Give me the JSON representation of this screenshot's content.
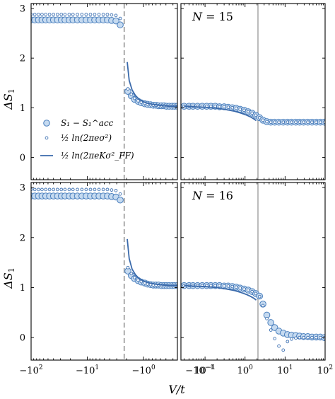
{
  "chart_data": [
    {
      "type": "scatter",
      "panel": "top-left",
      "annotation": "",
      "ylabel": "ΔS_1",
      "xlabel": "",
      "x_scale": "symlog-negative",
      "xlim": [
        -100,
        -0.25
      ],
      "ylim": [
        -0.45,
        3.1
      ],
      "yticks": [
        "0",
        "1",
        "2",
        "3"
      ],
      "xtick_labels": [],
      "vline": {
        "x": -2.2,
        "style": "dashed",
        "color": "#b5b5b5"
      },
      "legend": {
        "placement": "lower-left",
        "entries": [
          {
            "marker": "big-circle",
            "text": "S₁ − S₁^acc"
          },
          {
            "marker": "small-circle",
            "text": "½ ln(2πeσ²)"
          },
          {
            "marker": "line",
            "text": "½ ln(2πeKσ²_FF)"
          }
        ]
      },
      "series": [
        {
          "name": "S₁ − S₁^acc",
          "marker": "big-circle",
          "x": [
            -100,
            -86,
            -74,
            -64,
            -55,
            -47,
            -40,
            -34,
            -29,
            -25,
            -21,
            -18,
            -15,
            -12.5,
            -10.5,
            -8.8,
            -7.4,
            -6.2,
            -5.2,
            -4.4,
            -3.7,
            -3.1,
            -2.6,
            -1.9,
            -1.65,
            -1.45,
            -1.25,
            -1.1,
            -0.95,
            -0.85,
            -0.75,
            -0.67,
            -0.6,
            -0.54,
            -0.48,
            -0.43,
            -0.39,
            -0.35,
            -0.31,
            -0.28,
            -0.25
          ],
          "y": [
            2.77,
            2.77,
            2.77,
            2.77,
            2.77,
            2.77,
            2.77,
            2.77,
            2.77,
            2.77,
            2.77,
            2.77,
            2.77,
            2.77,
            2.77,
            2.77,
            2.77,
            2.77,
            2.77,
            2.77,
            2.76,
            2.75,
            2.67,
            1.33,
            1.24,
            1.17,
            1.13,
            1.1,
            1.08,
            1.07,
            1.06,
            1.05,
            1.05,
            1.04,
            1.04,
            1.04,
            1.03,
            1.03,
            1.03,
            1.03,
            1.03
          ]
        },
        {
          "name": "½ ln(2πeσ²)",
          "marker": "small-circle",
          "x": [
            -100,
            -86,
            -74,
            -64,
            -55,
            -47,
            -40,
            -34,
            -29,
            -25,
            -21,
            -18,
            -15,
            -12.5,
            -10.5,
            -8.8,
            -7.4,
            -6.2,
            -5.2,
            -4.4,
            -3.7,
            -3.1,
            -2.6,
            -1.9,
            -1.65,
            -1.45,
            -1.25,
            -1.1,
            -0.95,
            -0.85,
            -0.75,
            -0.67,
            -0.6,
            -0.54,
            -0.48,
            -0.43,
            -0.39,
            -0.35,
            -0.31,
            -0.28,
            -0.25
          ],
          "y": [
            2.88,
            2.88,
            2.88,
            2.88,
            2.88,
            2.88,
            2.88,
            2.88,
            2.88,
            2.88,
            2.88,
            2.88,
            2.88,
            2.88,
            2.88,
            2.88,
            2.88,
            2.88,
            2.88,
            2.88,
            2.87,
            2.86,
            2.8,
            1.38,
            1.27,
            1.19,
            1.14,
            1.11,
            1.09,
            1.07,
            1.06,
            1.05,
            1.05,
            1.04,
            1.04,
            1.04,
            1.03,
            1.03,
            1.03,
            1.03,
            1.03
          ]
        },
        {
          "name": "½ ln(2πeKσ²_FF)",
          "marker": "line",
          "x": [
            -1.95,
            -1.8,
            -1.6,
            -1.4,
            -1.2,
            -1.0,
            -0.85,
            -0.7,
            -0.55,
            -0.45,
            -0.35,
            -0.25
          ],
          "y": [
            1.92,
            1.55,
            1.36,
            1.25,
            1.17,
            1.12,
            1.09,
            1.07,
            1.05,
            1.04,
            1.03,
            1.03
          ]
        }
      ]
    },
    {
      "type": "scatter",
      "panel": "top-right",
      "annotation": "N = 15",
      "xlabel": "",
      "x_scale": "log",
      "xlim": [
        0.025,
        100
      ],
      "ylim": [
        -0.45,
        3.1
      ],
      "xtick_labels": [],
      "vline": {
        "x": 2.1,
        "style": "solid",
        "color": "#bdbdbd"
      },
      "series": [
        {
          "name": "S₁ − S₁^acc",
          "marker": "big-circle",
          "x": [
            0.03,
            0.04,
            0.05,
            0.065,
            0.085,
            0.11,
            0.14,
            0.18,
            0.23,
            0.3,
            0.38,
            0.48,
            0.6,
            0.75,
            0.95,
            1.2,
            1.5,
            1.85,
            2.3,
            2.8,
            3.5,
            4.4,
            5.5,
            7,
            9,
            11.5,
            14.5,
            18.5,
            23,
            29,
            37,
            47,
            60,
            76,
            96
          ],
          "y": [
            1.03,
            1.03,
            1.03,
            1.03,
            1.03,
            1.03,
            1.03,
            1.03,
            1.02,
            1.02,
            1.01,
            1.0,
            0.99,
            0.97,
            0.95,
            0.92,
            0.89,
            0.85,
            0.8,
            0.75,
            0.72,
            0.71,
            0.71,
            0.71,
            0.71,
            0.71,
            0.71,
            0.71,
            0.71,
            0.71,
            0.71,
            0.71,
            0.71,
            0.71,
            0.71
          ]
        },
        {
          "name": "½ ln(2πeσ²)",
          "marker": "small-circle",
          "x": [
            0.03,
            0.04,
            0.05,
            0.065,
            0.085,
            0.11,
            0.14,
            0.18,
            0.23,
            0.3,
            0.38,
            0.48,
            0.6,
            0.75,
            0.95,
            1.2,
            1.5,
            1.85,
            2.3,
            2.8,
            3.5,
            4.4,
            5.5,
            7,
            9,
            11.5,
            14.5,
            18.5,
            23,
            29,
            37,
            47,
            60,
            76,
            96
          ],
          "y": [
            1.03,
            1.03,
            1.03,
            1.03,
            1.03,
            1.03,
            1.03,
            1.03,
            1.02,
            1.02,
            1.01,
            1.0,
            0.99,
            0.97,
            0.95,
            0.92,
            0.89,
            0.85,
            0.8,
            0.75,
            0.72,
            0.71,
            0.71,
            0.71,
            0.71,
            0.71,
            0.71,
            0.71,
            0.71,
            0.71,
            0.71,
            0.71,
            0.71,
            0.71,
            0.71
          ]
        },
        {
          "name": "½ ln(2πeKσ²_FF)",
          "marker": "line",
          "x": [
            0.03,
            0.05,
            0.1,
            0.2,
            0.35,
            0.55,
            0.8,
            1.1,
            1.4,
            1.7,
            1.9
          ],
          "y": [
            1.03,
            1.02,
            1.01,
            0.99,
            0.96,
            0.93,
            0.89,
            0.85,
            0.81,
            0.77,
            0.74
          ]
        }
      ]
    },
    {
      "type": "scatter",
      "panel": "bottom-left",
      "annotation": "",
      "ylabel": "ΔS_1",
      "xlabel": "V/t",
      "x_scale": "symlog-negative",
      "xlim": [
        -100,
        -0.25
      ],
      "ylim": [
        -0.45,
        3.1
      ],
      "yticks": [
        "0",
        "1",
        "2",
        "3"
      ],
      "xtick_labels": [
        "−10²",
        "−10¹",
        "−10⁰",
        "−10⁻¹"
      ],
      "xtick_values": [
        -100,
        -10,
        -1,
        -0.1
      ],
      "vline": {
        "x": -2.2,
        "style": "dashed",
        "color": "#b5b5b5"
      },
      "series": [
        {
          "name": "S₁ − S₁^acc",
          "marker": "big-circle",
          "x": [
            -100,
            -86,
            -74,
            -64,
            -55,
            -47,
            -40,
            -34,
            -29,
            -25,
            -21,
            -18,
            -15,
            -12.5,
            -10.5,
            -8.8,
            -7.4,
            -6.2,
            -5.2,
            -4.4,
            -3.7,
            -3.1,
            -2.6,
            -1.9,
            -1.65,
            -1.45,
            -1.25,
            -1.1,
            -0.95,
            -0.85,
            -0.75,
            -0.67,
            -0.6,
            -0.54,
            -0.48,
            -0.43,
            -0.39,
            -0.35,
            -0.31,
            -0.28,
            -0.25
          ],
          "y": [
            2.83,
            2.83,
            2.83,
            2.83,
            2.83,
            2.83,
            2.83,
            2.83,
            2.83,
            2.83,
            2.83,
            2.83,
            2.83,
            2.83,
            2.83,
            2.83,
            2.83,
            2.83,
            2.83,
            2.83,
            2.82,
            2.81,
            2.75,
            1.33,
            1.24,
            1.18,
            1.14,
            1.11,
            1.09,
            1.07,
            1.06,
            1.05,
            1.05,
            1.05,
            1.04,
            1.04,
            1.04,
            1.04,
            1.04,
            1.04,
            1.04
          ]
        },
        {
          "name": "½ ln(2πeσ²)",
          "marker": "small-circle",
          "x": [
            -100,
            -86,
            -74,
            -64,
            -55,
            -47,
            -40,
            -34,
            -29,
            -25,
            -21,
            -18,
            -15,
            -12.5,
            -10.5,
            -8.8,
            -7.4,
            -6.2,
            -5.2,
            -4.4,
            -3.7,
            -3.1,
            -2.6,
            -1.9,
            -1.65,
            -1.45,
            -1.25,
            -1.1,
            -0.95,
            -0.85,
            -0.75,
            -0.67,
            -0.6,
            -0.54,
            -0.48,
            -0.43,
            -0.39,
            -0.35,
            -0.31,
            -0.28,
            -0.25
          ],
          "y": [
            2.96,
            2.96,
            2.96,
            2.96,
            2.96,
            2.96,
            2.96,
            2.96,
            2.96,
            2.96,
            2.96,
            2.96,
            2.96,
            2.96,
            2.96,
            2.96,
            2.96,
            2.96,
            2.96,
            2.96,
            2.95,
            2.94,
            2.87,
            1.4,
            1.28,
            1.2,
            1.15,
            1.12,
            1.09,
            1.07,
            1.06,
            1.05,
            1.05,
            1.05,
            1.04,
            1.04,
            1.04,
            1.04,
            1.04,
            1.04,
            1.04
          ]
        },
        {
          "name": "½ ln(2πeKσ²_FF)",
          "marker": "line",
          "x": [
            -1.95,
            -1.8,
            -1.6,
            -1.4,
            -1.2,
            -1.0,
            -0.85,
            -0.7,
            -0.55,
            -0.45,
            -0.35,
            -0.25
          ],
          "y": [
            1.97,
            1.58,
            1.37,
            1.26,
            1.18,
            1.13,
            1.1,
            1.08,
            1.06,
            1.05,
            1.04,
            1.04
          ]
        }
      ]
    },
    {
      "type": "scatter",
      "panel": "bottom-right",
      "annotation": "N = 16",
      "xlabel": "V/t",
      "x_scale": "log",
      "xlim": [
        0.025,
        100
      ],
      "ylim": [
        -0.45,
        3.1
      ],
      "xtick_labels": [
        "10⁻¹",
        "10⁰",
        "10¹",
        "10²"
      ],
      "xtick_values": [
        0.1,
        1,
        10,
        100
      ],
      "vline": {
        "x": 2.1,
        "style": "solid",
        "color": "#bdbdbd"
      },
      "series": [
        {
          "name": "S₁ − S₁^acc",
          "marker": "big-circle",
          "x": [
            0.03,
            0.04,
            0.05,
            0.065,
            0.085,
            0.11,
            0.14,
            0.18,
            0.23,
            0.3,
            0.38,
            0.48,
            0.6,
            0.75,
            0.95,
            1.2,
            1.5,
            1.85,
            2.3,
            2.8,
            3.5,
            4.4,
            5.5,
            7,
            9,
            11.5,
            14.5,
            18.5,
            23,
            29,
            37,
            47,
            60,
            76,
            96
          ],
          "y": [
            1.04,
            1.04,
            1.04,
            1.04,
            1.04,
            1.04,
            1.04,
            1.04,
            1.04,
            1.03,
            1.03,
            1.02,
            1.01,
            0.99,
            0.97,
            0.95,
            0.92,
            0.88,
            0.83,
            0.67,
            0.45,
            0.3,
            0.2,
            0.13,
            0.09,
            0.06,
            0.05,
            0.04,
            0.03,
            0.02,
            0.02,
            0.01,
            0.01,
            0.01,
            0.0
          ]
        },
        {
          "name": "½ ln(2πeσ²)",
          "marker": "small-circle",
          "x": [
            0.03,
            0.04,
            0.05,
            0.065,
            0.085,
            0.11,
            0.14,
            0.18,
            0.23,
            0.3,
            0.38,
            0.48,
            0.6,
            0.75,
            0.95,
            1.2,
            1.5,
            1.85,
            2.3,
            2.8,
            3.5,
            4.4,
            5.5,
            7,
            9,
            11.5,
            14.5,
            18.5,
            23,
            29,
            37,
            47,
            60,
            76,
            96
          ],
          "y": [
            1.04,
            1.04,
            1.04,
            1.04,
            1.04,
            1.04,
            1.04,
            1.04,
            1.04,
            1.03,
            1.03,
            1.02,
            1.01,
            0.99,
            0.97,
            0.95,
            0.92,
            0.88,
            0.82,
            0.64,
            0.38,
            0.15,
            -0.02,
            -0.17,
            -0.25,
            -0.08,
            -0.03,
            -0.01,
            0.0,
            0.0,
            0.0,
            0.0,
            0.0,
            0.0,
            0.0
          ]
        },
        {
          "name": "½ ln(2πeKσ²_FF)",
          "marker": "line",
          "x": [
            0.03,
            0.05,
            0.1,
            0.2,
            0.35,
            0.55,
            0.8,
            1.1,
            1.4,
            1.7,
            1.9
          ],
          "y": [
            1.04,
            1.03,
            1.02,
            1.0,
            0.97,
            0.94,
            0.9,
            0.86,
            0.82,
            0.78,
            0.75
          ]
        }
      ]
    }
  ]
}
